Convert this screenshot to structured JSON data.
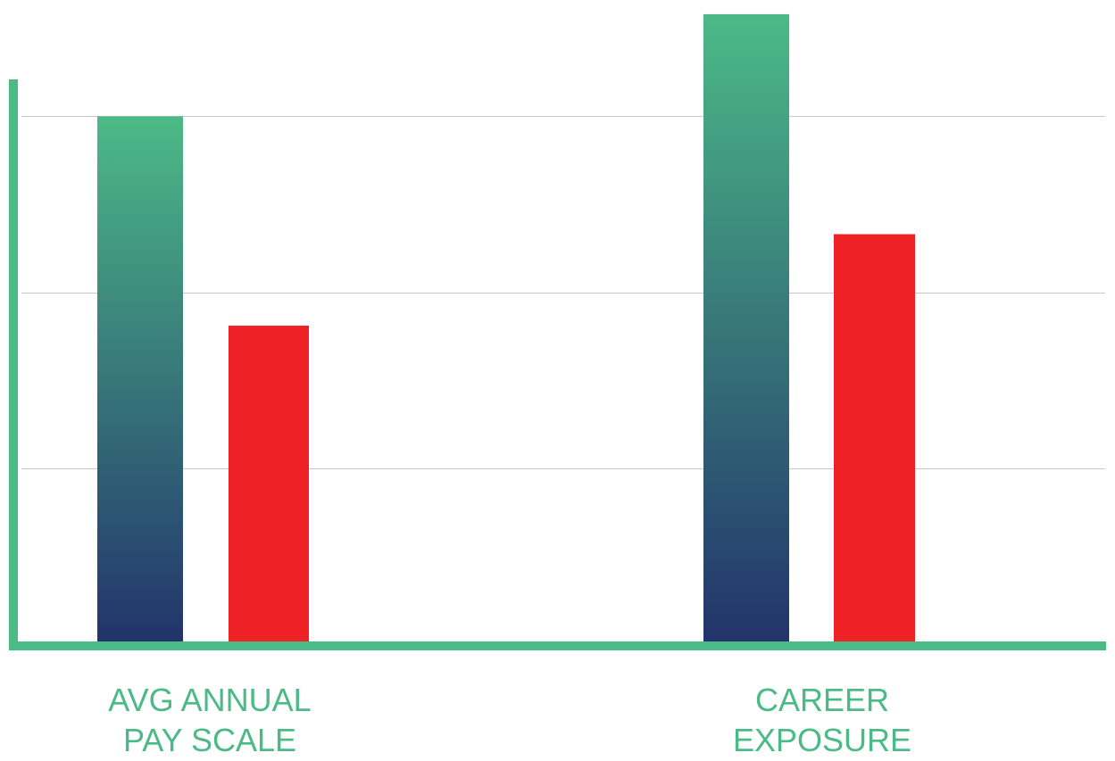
{
  "chart_data": {
    "type": "bar",
    "categories": [
      "AVG ANNUAL PAY SCALE",
      "CAREER EXPOSURE"
    ],
    "category_label_lines": [
      [
        "AVG ANNUAL",
        "PAY SCALE"
      ],
      [
        "CAREER",
        "EXPOSURE"
      ]
    ],
    "series": [
      {
        "values": [
          3.0,
          3.58
        ]
      },
      {
        "values": [
          1.81,
          2.33
        ]
      }
    ],
    "series_colors": [
      {
        "top": "#4cba87",
        "bottom": "#22336b"
      },
      {
        "top": "#ee2226",
        "bottom": "#ee2226"
      }
    ],
    "ylim": [
      0,
      3.6
    ],
    "gridlines": [
      1,
      2,
      3
    ],
    "grid": true,
    "legend": "none",
    "title": "",
    "xlabel": "",
    "ylabel": "",
    "colors": {
      "axis": "#4cba87",
      "grid": "#c8c8c8",
      "label": "#4cba87"
    }
  }
}
